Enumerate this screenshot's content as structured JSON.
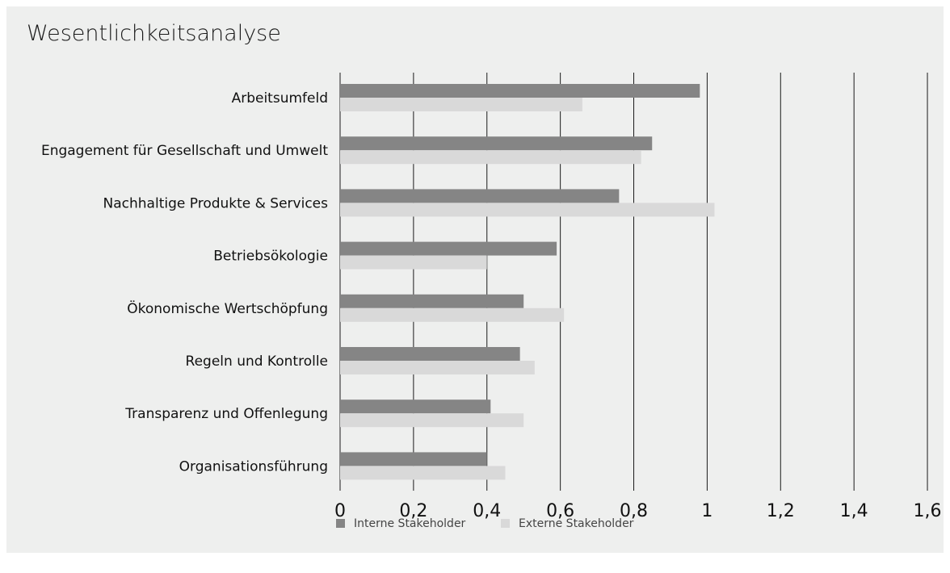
{
  "chart_data": {
    "type": "bar",
    "orientation": "horizontal",
    "title": "Wesentlichkeitsanalyse",
    "categories": [
      "Arbeitsumfeld",
      "Engagement für Gesellschaft und Umwelt",
      "Nachhaltige Produkte & Services",
      "Betriebsökologie",
      "Ökonomische Wertschöpfung",
      "Regeln und Kontrolle",
      "Transparenz und Offenlegung",
      "Organisationsführung"
    ],
    "series": [
      {
        "name": "Interne Stakeholder",
        "color": "#858585",
        "values": [
          0.98,
          0.85,
          0.76,
          0.59,
          0.5,
          0.49,
          0.41,
          0.4
        ]
      },
      {
        "name": "Externe Stakeholder",
        "color": "#d9d9d9",
        "values": [
          0.66,
          0.82,
          1.02,
          0.4,
          0.61,
          0.53,
          0.5,
          0.45
        ]
      }
    ],
    "xlim": [
      0,
      1.6
    ],
    "xticks": [
      "0",
      "0,2",
      "0,4",
      "0,6",
      "0,8",
      "1",
      "1,2",
      "1,4",
      "1,6"
    ],
    "grid": true,
    "legend_position": "bottom"
  }
}
